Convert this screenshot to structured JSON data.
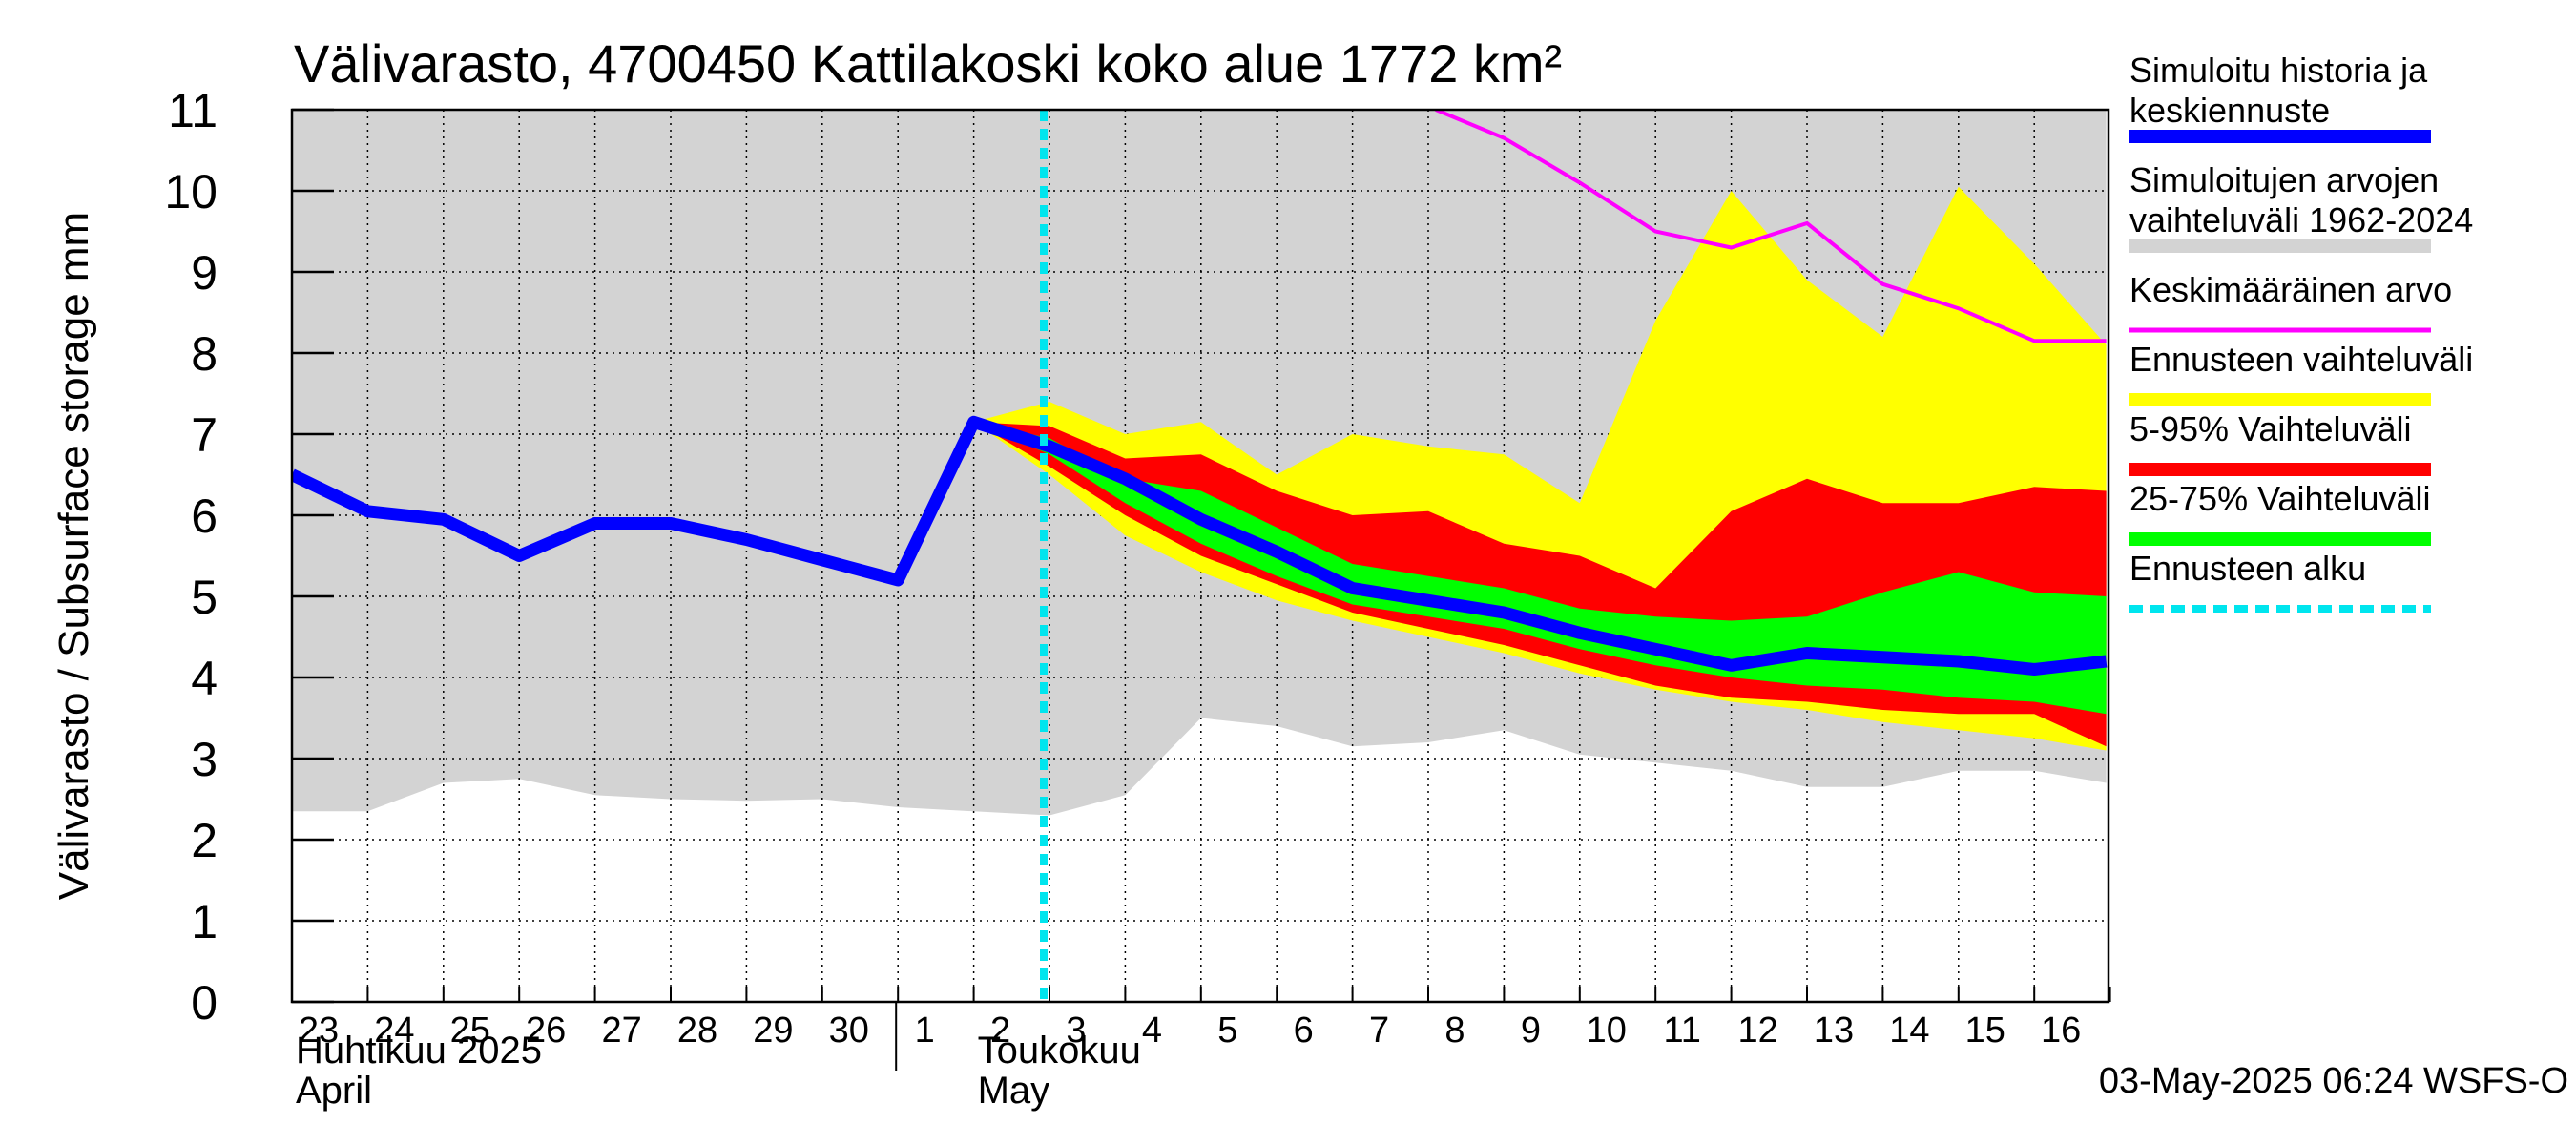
{
  "chart_data": {
    "type": "area",
    "title": "Välivarasto, 4700450 Kattilakoski koko alue 1772 km²",
    "ylabel": "Välivarasto / Subsurface storage  mm",
    "ylim": [
      0,
      11
    ],
    "yticks": [
      0,
      1,
      2,
      3,
      4,
      5,
      6,
      7,
      8,
      9,
      10,
      11
    ],
    "x_start_label": "23",
    "x_day_labels": [
      "23",
      "24",
      "25",
      "26",
      "27",
      "28",
      "29",
      "30",
      "1",
      "2",
      "3",
      "4",
      "5",
      "6",
      "7",
      "8",
      "9",
      "10",
      "11",
      "12",
      "13",
      "14",
      "15",
      "16"
    ],
    "month_labels": [
      {
        "line1": "Huhtikuu  2025",
        "line2": "April",
        "day_index": 0
      },
      {
        "line1": "Toukokuu",
        "line2": "May",
        "day_index": 9
      }
    ],
    "month_boundary_index": 8,
    "forecast_start_index": 10,
    "timestamp": "03-May-2025 06:24 WSFS-O",
    "grid": true,
    "legend": [
      {
        "label_line1": "Simuloitu historia ja",
        "label_line2": "keskiennuste",
        "color": "#0000ff",
        "style": "thick"
      },
      {
        "label_line1": "Simuloitujen arvojen",
        "label_line2": "vaihteluväli 1962-2024",
        "color": "#d3d3d3",
        "style": "band"
      },
      {
        "label_line1": "Keskimääräinen arvo",
        "label_line2": "",
        "color": "#ff00ff",
        "style": "line"
      },
      {
        "label_line1": "Ennusteen vaihteluväli",
        "label_line2": "",
        "color": "#ffff00",
        "style": "band"
      },
      {
        "label_line1": "5-95% Vaihteluväli",
        "label_line2": "",
        "color": "#ff0000",
        "style": "band"
      },
      {
        "label_line1": "25-75% Vaihteluväli",
        "label_line2": "",
        "color": "#00ff00",
        "style": "band"
      },
      {
        "label_line1": "Ennusteen alku",
        "label_line2": "",
        "color": "#00e5ee",
        "style": "dashed"
      }
    ],
    "series": {
      "hist_range": {
        "x": [
          0,
          1,
          2,
          3,
          4,
          5,
          6,
          7,
          8,
          9,
          10,
          11,
          12,
          13,
          14,
          15,
          16,
          17,
          18,
          19,
          20,
          21,
          22,
          23,
          23.95
        ],
        "low": [
          2.35,
          2.35,
          2.7,
          2.75,
          2.55,
          2.5,
          2.48,
          2.5,
          2.4,
          2.35,
          2.3,
          2.55,
          3.5,
          3.4,
          3.15,
          3.2,
          3.35,
          3.05,
          2.95,
          2.85,
          2.65,
          2.65,
          2.85,
          2.85,
          2.7
        ],
        "high": [
          11,
          11,
          11,
          11,
          11,
          11,
          11,
          11,
          11,
          11,
          11,
          11,
          11,
          11,
          11,
          11,
          11,
          11,
          11,
          11,
          11,
          11,
          11,
          11,
          11
        ]
      },
      "mean": {
        "x": [
          15.1,
          16,
          17,
          18,
          19,
          20,
          21,
          22,
          23,
          23.95
        ],
        "values": [
          11.0,
          10.65,
          10.1,
          9.5,
          9.3,
          9.6,
          8.85,
          8.55,
          8.15,
          8.15
        ]
      },
      "forecast_range": {
        "x": [
          9,
          10,
          11,
          12,
          13,
          14,
          15,
          16,
          17,
          18,
          19,
          20,
          21,
          22,
          23,
          23.95
        ],
        "low": [
          7.15,
          6.5,
          5.75,
          5.3,
          4.95,
          4.7,
          4.5,
          4.3,
          4.05,
          3.85,
          3.7,
          3.6,
          3.45,
          3.35,
          3.25,
          3.1
        ],
        "high": [
          7.15,
          7.4,
          7.0,
          7.15,
          6.5,
          7.0,
          6.85,
          6.75,
          6.15,
          8.4,
          10.0,
          8.9,
          8.2,
          10.05,
          9.1,
          8.1
        ]
      },
      "p5_95": {
        "x": [
          9,
          10,
          11,
          12,
          13,
          14,
          15,
          16,
          17,
          18,
          19,
          20,
          21,
          22,
          23,
          23.95
        ],
        "low": [
          7.15,
          6.6,
          6.0,
          5.5,
          5.15,
          4.8,
          4.6,
          4.4,
          4.15,
          3.9,
          3.75,
          3.7,
          3.6,
          3.55,
          3.55,
          3.15
        ],
        "high": [
          7.15,
          7.1,
          6.7,
          6.75,
          6.3,
          6.0,
          6.05,
          5.65,
          5.5,
          5.1,
          6.05,
          6.45,
          6.15,
          6.15,
          6.35,
          6.3
        ]
      },
      "p25_75": {
        "x": [
          9,
          10,
          11,
          12,
          13,
          14,
          15,
          16,
          17,
          18,
          19,
          20,
          21,
          22,
          23,
          23.95
        ],
        "low": [
          7.15,
          6.75,
          6.15,
          5.65,
          5.25,
          4.9,
          4.75,
          4.6,
          4.35,
          4.15,
          4.0,
          3.9,
          3.85,
          3.75,
          3.7,
          3.55
        ],
        "high": [
          7.15,
          6.95,
          6.45,
          6.3,
          5.85,
          5.4,
          5.25,
          5.1,
          4.85,
          4.75,
          4.7,
          4.75,
          5.05,
          5.3,
          5.05,
          5.0
        ]
      },
      "mean_forecast": {
        "x": [
          0,
          1,
          2,
          3,
          4,
          5,
          6,
          7,
          8,
          9,
          10,
          11,
          12,
          13,
          14,
          15,
          16,
          17,
          18,
          19,
          20,
          21,
          22,
          23,
          23.95
        ],
        "values": [
          6.5,
          6.05,
          5.95,
          5.5,
          5.9,
          5.9,
          5.7,
          5.45,
          5.2,
          7.15,
          6.85,
          6.45,
          5.95,
          5.55,
          5.1,
          4.95,
          4.8,
          4.55,
          4.35,
          4.15,
          4.3,
          4.25,
          4.2,
          4.1,
          4.2
        ]
      }
    }
  }
}
